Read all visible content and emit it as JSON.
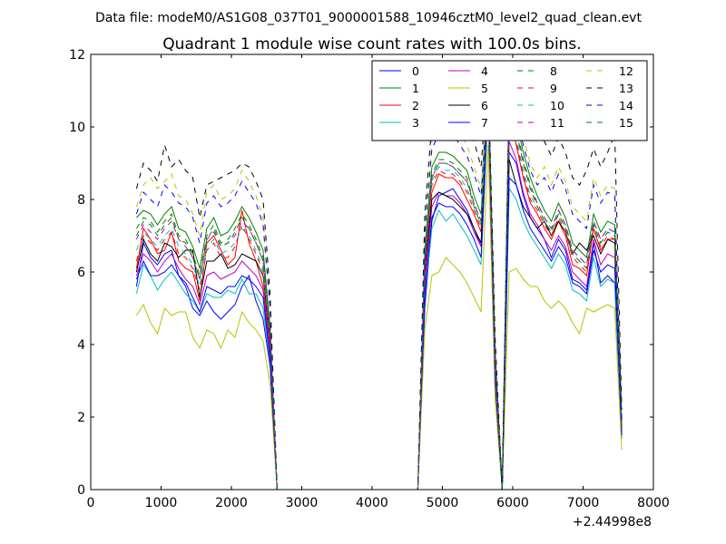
{
  "chart_data": {
    "type": "line",
    "suptitle": "Data file: modeM0/AS1G08_037T01_9000001588_10946cztM0_level2_quad_clean.evt",
    "title": "Quadrant 1 module wise count rates with 100.0s bins.",
    "xlabel": "",
    "ylabel": "",
    "x_offset_label": "+2.44998e8",
    "xlim": [
      0,
      8000
    ],
    "ylim": [
      0,
      12
    ],
    "x_ticks": [
      0,
      1000,
      2000,
      3000,
      4000,
      5000,
      6000,
      7000,
      8000
    ],
    "y_ticks": [
      0,
      2,
      4,
      6,
      8,
      10,
      12
    ],
    "x_tick_labels": [
      "0",
      "1000",
      "2000",
      "3000",
      "4000",
      "5000",
      "6000",
      "7000",
      "8000"
    ],
    "y_tick_labels": [
      "0",
      "2",
      "4",
      "6",
      "8",
      "10",
      "12"
    ],
    "legend_position": "top-right",
    "x": [
      650,
      750,
      850,
      950,
      1050,
      1150,
      1250,
      1350,
      1450,
      1550,
      1650,
      1750,
      1850,
      1950,
      2050,
      2150,
      2250,
      2350,
      2450,
      2550,
      2650,
      4650,
      4750,
      4850,
      4950,
      5050,
      5150,
      5250,
      5350,
      5450,
      5550,
      5650,
      5750,
      5850,
      5950,
      6050,
      6150,
      6250,
      6350,
      6450,
      6550,
      6650,
      6750,
      6850,
      6950,
      7050,
      7150,
      7250,
      7350,
      7450,
      7550
    ],
    "series": [
      {
        "name": "0",
        "color": "#0000ff",
        "dash": "solid",
        "values": [
          5.6,
          6.8,
          6.4,
          6.2,
          6.5,
          6.6,
          5.9,
          5.6,
          5.0,
          4.8,
          5.2,
          4.9,
          4.7,
          4.9,
          5.1,
          5.6,
          5.9,
          5.2,
          4.7,
          3.4,
          0.0,
          0.0,
          5.0,
          7.4,
          8.1,
          8.2,
          8.3,
          8.0,
          7.7,
          7.2,
          6.7,
          10.8,
          3.0,
          0.0,
          9.3,
          9.0,
          8.1,
          7.5,
          7.2,
          6.9,
          6.4,
          6.9,
          6.6,
          5.8,
          5.7,
          5.5,
          6.8,
          5.7,
          5.9,
          5.7,
          1.5
        ]
      },
      {
        "name": "1",
        "color": "#008000",
        "dash": "solid",
        "values": [
          7.5,
          7.7,
          7.6,
          7.3,
          7.6,
          7.8,
          7.2,
          7.1,
          6.7,
          6.1,
          7.2,
          7.5,
          7.0,
          7.1,
          7.4,
          7.8,
          7.5,
          7.1,
          6.6,
          4.5,
          0.0,
          0.0,
          6.6,
          8.9,
          9.3,
          9.3,
          9.2,
          9.0,
          8.8,
          8.1,
          7.6,
          11.2,
          3.6,
          0.0,
          11.1,
          10.2,
          9.3,
          8.6,
          8.1,
          7.7,
          7.4,
          7.9,
          7.5,
          6.8,
          6.6,
          6.4,
          7.6,
          7.1,
          7.4,
          7.3,
          1.8
        ]
      },
      {
        "name": "2",
        "color": "#ff0000",
        "dash": "solid",
        "values": [
          6.1,
          7.2,
          6.9,
          6.5,
          6.6,
          7.1,
          6.3,
          6.1,
          6.0,
          5.2,
          6.8,
          7.0,
          6.6,
          6.2,
          6.4,
          7.7,
          6.8,
          6.3,
          5.6,
          4.0,
          0.0,
          0.0,
          6.0,
          8.2,
          8.7,
          8.6,
          8.6,
          8.4,
          8.0,
          7.6,
          7.1,
          11.0,
          3.2,
          0.0,
          10.3,
          9.5,
          8.6,
          7.9,
          7.6,
          7.2,
          6.9,
          7.4,
          7.0,
          6.2,
          6.1,
          5.9,
          7.2,
          6.6,
          6.9,
          6.9,
          1.7
        ]
      },
      {
        "name": "3",
        "color": "#00bfbf",
        "dash": "solid",
        "values": [
          5.4,
          6.2,
          5.9,
          5.5,
          5.8,
          6.0,
          5.7,
          5.4,
          5.2,
          4.9,
          5.4,
          5.3,
          5.3,
          5.5,
          5.4,
          5.8,
          5.4,
          5.4,
          5.0,
          3.5,
          0.0,
          0.0,
          5.3,
          7.2,
          7.7,
          7.4,
          7.6,
          7.3,
          7.0,
          6.6,
          6.2,
          10.6,
          2.9,
          0.0,
          8.3,
          8.0,
          7.4,
          7.0,
          6.7,
          6.4,
          6.1,
          6.5,
          6.2,
          5.5,
          5.4,
          5.2,
          6.4,
          5.6,
          5.8,
          5.7,
          1.4
        ]
      },
      {
        "name": "4",
        "color": "#bf00bf",
        "dash": "solid",
        "values": [
          5.9,
          6.5,
          6.3,
          6.0,
          6.3,
          6.5,
          6.1,
          5.8,
          5.6,
          5.1,
          5.9,
          6.0,
          5.8,
          5.9,
          6.0,
          6.3,
          6.1,
          5.9,
          5.5,
          3.8,
          0.0,
          0.0,
          5.7,
          7.8,
          8.2,
          8.1,
          8.1,
          7.9,
          7.6,
          7.1,
          6.7,
          10.9,
          3.1,
          0.0,
          9.6,
          9.1,
          8.2,
          7.6,
          7.3,
          6.9,
          6.6,
          7.0,
          6.7,
          6.0,
          5.8,
          5.6,
          6.9,
          6.2,
          6.5,
          6.4,
          1.6
        ]
      },
      {
        "name": "5",
        "color": "#bfbf00",
        "dash": "solid",
        "values": [
          4.8,
          5.1,
          4.6,
          4.3,
          5.0,
          4.8,
          4.9,
          4.9,
          4.2,
          3.9,
          4.4,
          4.3,
          3.9,
          4.4,
          4.2,
          4.9,
          4.6,
          4.4,
          4.1,
          2.9,
          0.0,
          0.0,
          4.4,
          5.9,
          6.0,
          6.4,
          6.2,
          6.0,
          5.7,
          5.3,
          4.9,
          9.5,
          2.5,
          0.0,
          6.0,
          6.1,
          5.8,
          5.6,
          5.6,
          5.2,
          5.0,
          5.2,
          5.0,
          4.6,
          4.3,
          5.0,
          4.9,
          5.0,
          5.1,
          5.0,
          1.1
        ]
      },
      {
        "name": "6",
        "color": "#000000",
        "dash": "solid",
        "values": [
          6.0,
          6.9,
          6.5,
          6.3,
          6.8,
          6.7,
          6.4,
          6.6,
          6.6,
          5.3,
          6.3,
          6.3,
          6.5,
          6.1,
          6.2,
          6.5,
          6.4,
          6.3,
          5.9,
          4.1,
          0.0,
          0.0,
          6.0,
          8.0,
          8.2,
          8.1,
          8.0,
          7.8,
          7.6,
          7.2,
          6.8,
          11.0,
          3.2,
          0.0,
          9.1,
          8.4,
          7.8,
          7.5,
          7.2,
          7.4,
          7.0,
          7.4,
          7.1,
          6.5,
          6.8,
          6.6,
          7.0,
          6.5,
          6.9,
          6.8,
          1.7
        ]
      },
      {
        "name": "7",
        "color": "#0000ff",
        "dash": "solid",
        "values": [
          5.8,
          6.3,
          5.9,
          5.9,
          6.0,
          6.2,
          5.9,
          5.7,
          5.3,
          4.9,
          5.6,
          5.5,
          5.4,
          5.6,
          5.6,
          5.9,
          5.8,
          5.6,
          5.3,
          3.6,
          0.0,
          0.0,
          5.4,
          7.5,
          7.9,
          7.8,
          7.8,
          7.6,
          7.3,
          6.9,
          6.4,
          10.7,
          3.0,
          0.0,
          8.6,
          8.4,
          7.7,
          7.2,
          6.9,
          6.6,
          6.3,
          6.7,
          6.4,
          5.7,
          5.6,
          5.4,
          6.6,
          6.0,
          6.2,
          6.1,
          1.5
        ]
      },
      {
        "name": "8",
        "color": "#008000",
        "dash": "dashed",
        "values": [
          7.2,
          7.5,
          7.4,
          7.1,
          7.4,
          7.6,
          7.0,
          6.9,
          6.5,
          5.9,
          7.0,
          7.3,
          6.8,
          6.9,
          7.2,
          7.6,
          7.3,
          6.9,
          6.4,
          4.4,
          0.0,
          0.0,
          6.4,
          8.7,
          9.1,
          9.1,
          9.0,
          8.8,
          8.6,
          7.9,
          7.4,
          11.1,
          3.5,
          0.0,
          10.9,
          10.0,
          9.1,
          8.4,
          7.9,
          7.5,
          7.2,
          7.7,
          7.3,
          6.6,
          6.4,
          6.2,
          7.4,
          6.9,
          7.2,
          7.1,
          1.7
        ]
      },
      {
        "name": "9",
        "color": "#ff0000",
        "dash": "dashed",
        "values": [
          6.3,
          7.0,
          6.8,
          6.6,
          6.9,
          7.1,
          6.5,
          6.4,
          6.1,
          5.5,
          6.6,
          6.8,
          6.4,
          6.4,
          6.7,
          7.3,
          6.9,
          6.5,
          6.0,
          4.1,
          0.0,
          0.0,
          6.1,
          8.4,
          8.8,
          8.7,
          8.7,
          8.5,
          8.2,
          7.7,
          7.2,
          11.0,
          3.3,
          0.0,
          10.1,
          9.6,
          8.7,
          8.0,
          7.7,
          7.3,
          7.0,
          7.5,
          7.1,
          6.4,
          6.2,
          6.0,
          7.2,
          6.7,
          7.0,
          6.9,
          1.7
        ]
      },
      {
        "name": "10",
        "color": "#00bfbf",
        "dash": "dashed",
        "values": [
          6.6,
          7.1,
          6.9,
          6.7,
          7.0,
          7.2,
          6.7,
          6.5,
          6.2,
          5.6,
          6.7,
          6.9,
          6.5,
          6.6,
          6.8,
          7.2,
          7.0,
          6.6,
          6.1,
          4.2,
          0.0,
          0.0,
          6.2,
          8.5,
          8.9,
          8.8,
          8.8,
          8.6,
          8.3,
          7.8,
          7.3,
          11.0,
          3.3,
          0.0,
          10.2,
          9.7,
          8.8,
          8.1,
          7.8,
          7.4,
          7.1,
          7.6,
          7.2,
          6.5,
          6.3,
          6.1,
          7.3,
          6.8,
          7.1,
          7.0,
          1.7
        ]
      },
      {
        "name": "11",
        "color": "#bf00bf",
        "dash": "dashed",
        "values": [
          6.9,
          7.3,
          7.1,
          6.9,
          7.2,
          7.4,
          6.9,
          6.7,
          6.4,
          5.8,
          6.9,
          7.1,
          6.7,
          6.8,
          7.0,
          7.4,
          7.2,
          6.8,
          6.3,
          4.3,
          0.0,
          0.0,
          6.3,
          8.6,
          9.0,
          9.0,
          8.9,
          8.7,
          8.5,
          7.9,
          7.4,
          11.1,
          3.4,
          0.0,
          10.5,
          9.9,
          9.0,
          8.3,
          7.9,
          7.5,
          7.2,
          7.7,
          7.3,
          6.6,
          6.4,
          6.2,
          7.4,
          6.9,
          7.2,
          7.1,
          1.7
        ]
      },
      {
        "name": "12",
        "color": "#bfbf00",
        "dash": "dashed",
        "values": [
          7.8,
          8.4,
          8.6,
          8.3,
          8.5,
          8.7,
          8.1,
          8.0,
          7.6,
          7.0,
          8.2,
          8.4,
          8.0,
          8.1,
          8.3,
          8.8,
          8.5,
          8.1,
          7.5,
          5.1,
          0.0,
          0.0,
          7.2,
          9.6,
          10.1,
          10.0,
          10.1,
          9.8,
          9.5,
          8.9,
          8.3,
          11.3,
          3.9,
          0.0,
          11.2,
          10.6,
          9.7,
          9.0,
          8.6,
          8.9,
          8.4,
          8.9,
          8.5,
          7.8,
          7.6,
          7.4,
          8.6,
          8.1,
          8.4,
          8.3,
          2.0
        ]
      },
      {
        "name": "13",
        "color": "#000000",
        "dash": "dashed",
        "values": [
          8.3,
          9.0,
          8.8,
          8.5,
          9.5,
          8.9,
          9.1,
          8.8,
          8.6,
          7.5,
          8.4,
          8.5,
          8.6,
          8.7,
          8.8,
          9.0,
          8.9,
          8.5,
          8.0,
          5.4,
          0.0,
          0.0,
          7.6,
          10.1,
          10.8,
          11.0,
          11.1,
          10.7,
          10.4,
          9.6,
          8.9,
          11.5,
          4.2,
          0.0,
          11.1,
          10.9,
          10.6,
          10.5,
          10.0,
          9.6,
          9.2,
          9.7,
          9.3,
          8.6,
          8.4,
          8.8,
          9.4,
          8.9,
          9.3,
          9.8,
          2.2
        ]
      },
      {
        "name": "14",
        "color": "#0000ff",
        "dash": "dashed",
        "values": [
          7.6,
          8.2,
          8.0,
          7.8,
          8.4,
          8.2,
          7.9,
          7.8,
          7.5,
          6.8,
          7.9,
          8.1,
          7.8,
          7.9,
          8.1,
          8.5,
          8.2,
          7.9,
          7.3,
          5.0,
          0.0,
          0.0,
          7.0,
          9.4,
          9.8,
          9.7,
          9.8,
          9.5,
          9.2,
          8.7,
          8.1,
          11.2,
          3.8,
          0.0,
          11.0,
          10.4,
          9.5,
          8.8,
          8.4,
          8.6,
          8.2,
          8.7,
          8.3,
          7.6,
          7.4,
          7.2,
          8.4,
          7.9,
          8.2,
          8.1,
          1.9
        ]
      },
      {
        "name": "15",
        "color": "#008000",
        "dash": "dashed",
        "values": [
          7.0,
          7.4,
          7.3,
          7.0,
          7.3,
          7.5,
          6.9,
          6.8,
          6.4,
          5.8,
          6.9,
          7.2,
          6.7,
          6.8,
          7.1,
          7.5,
          7.2,
          6.8,
          6.3,
          4.3,
          0.0,
          0.0,
          6.3,
          8.6,
          9.0,
          9.0,
          8.9,
          8.7,
          8.5,
          7.8,
          7.3,
          11.1,
          3.5,
          0.0,
          10.8,
          9.9,
          9.0,
          8.3,
          7.8,
          7.4,
          7.1,
          7.6,
          7.2,
          6.5,
          6.3,
          6.1,
          7.3,
          6.8,
          7.1,
          7.0,
          1.7
        ]
      }
    ]
  }
}
